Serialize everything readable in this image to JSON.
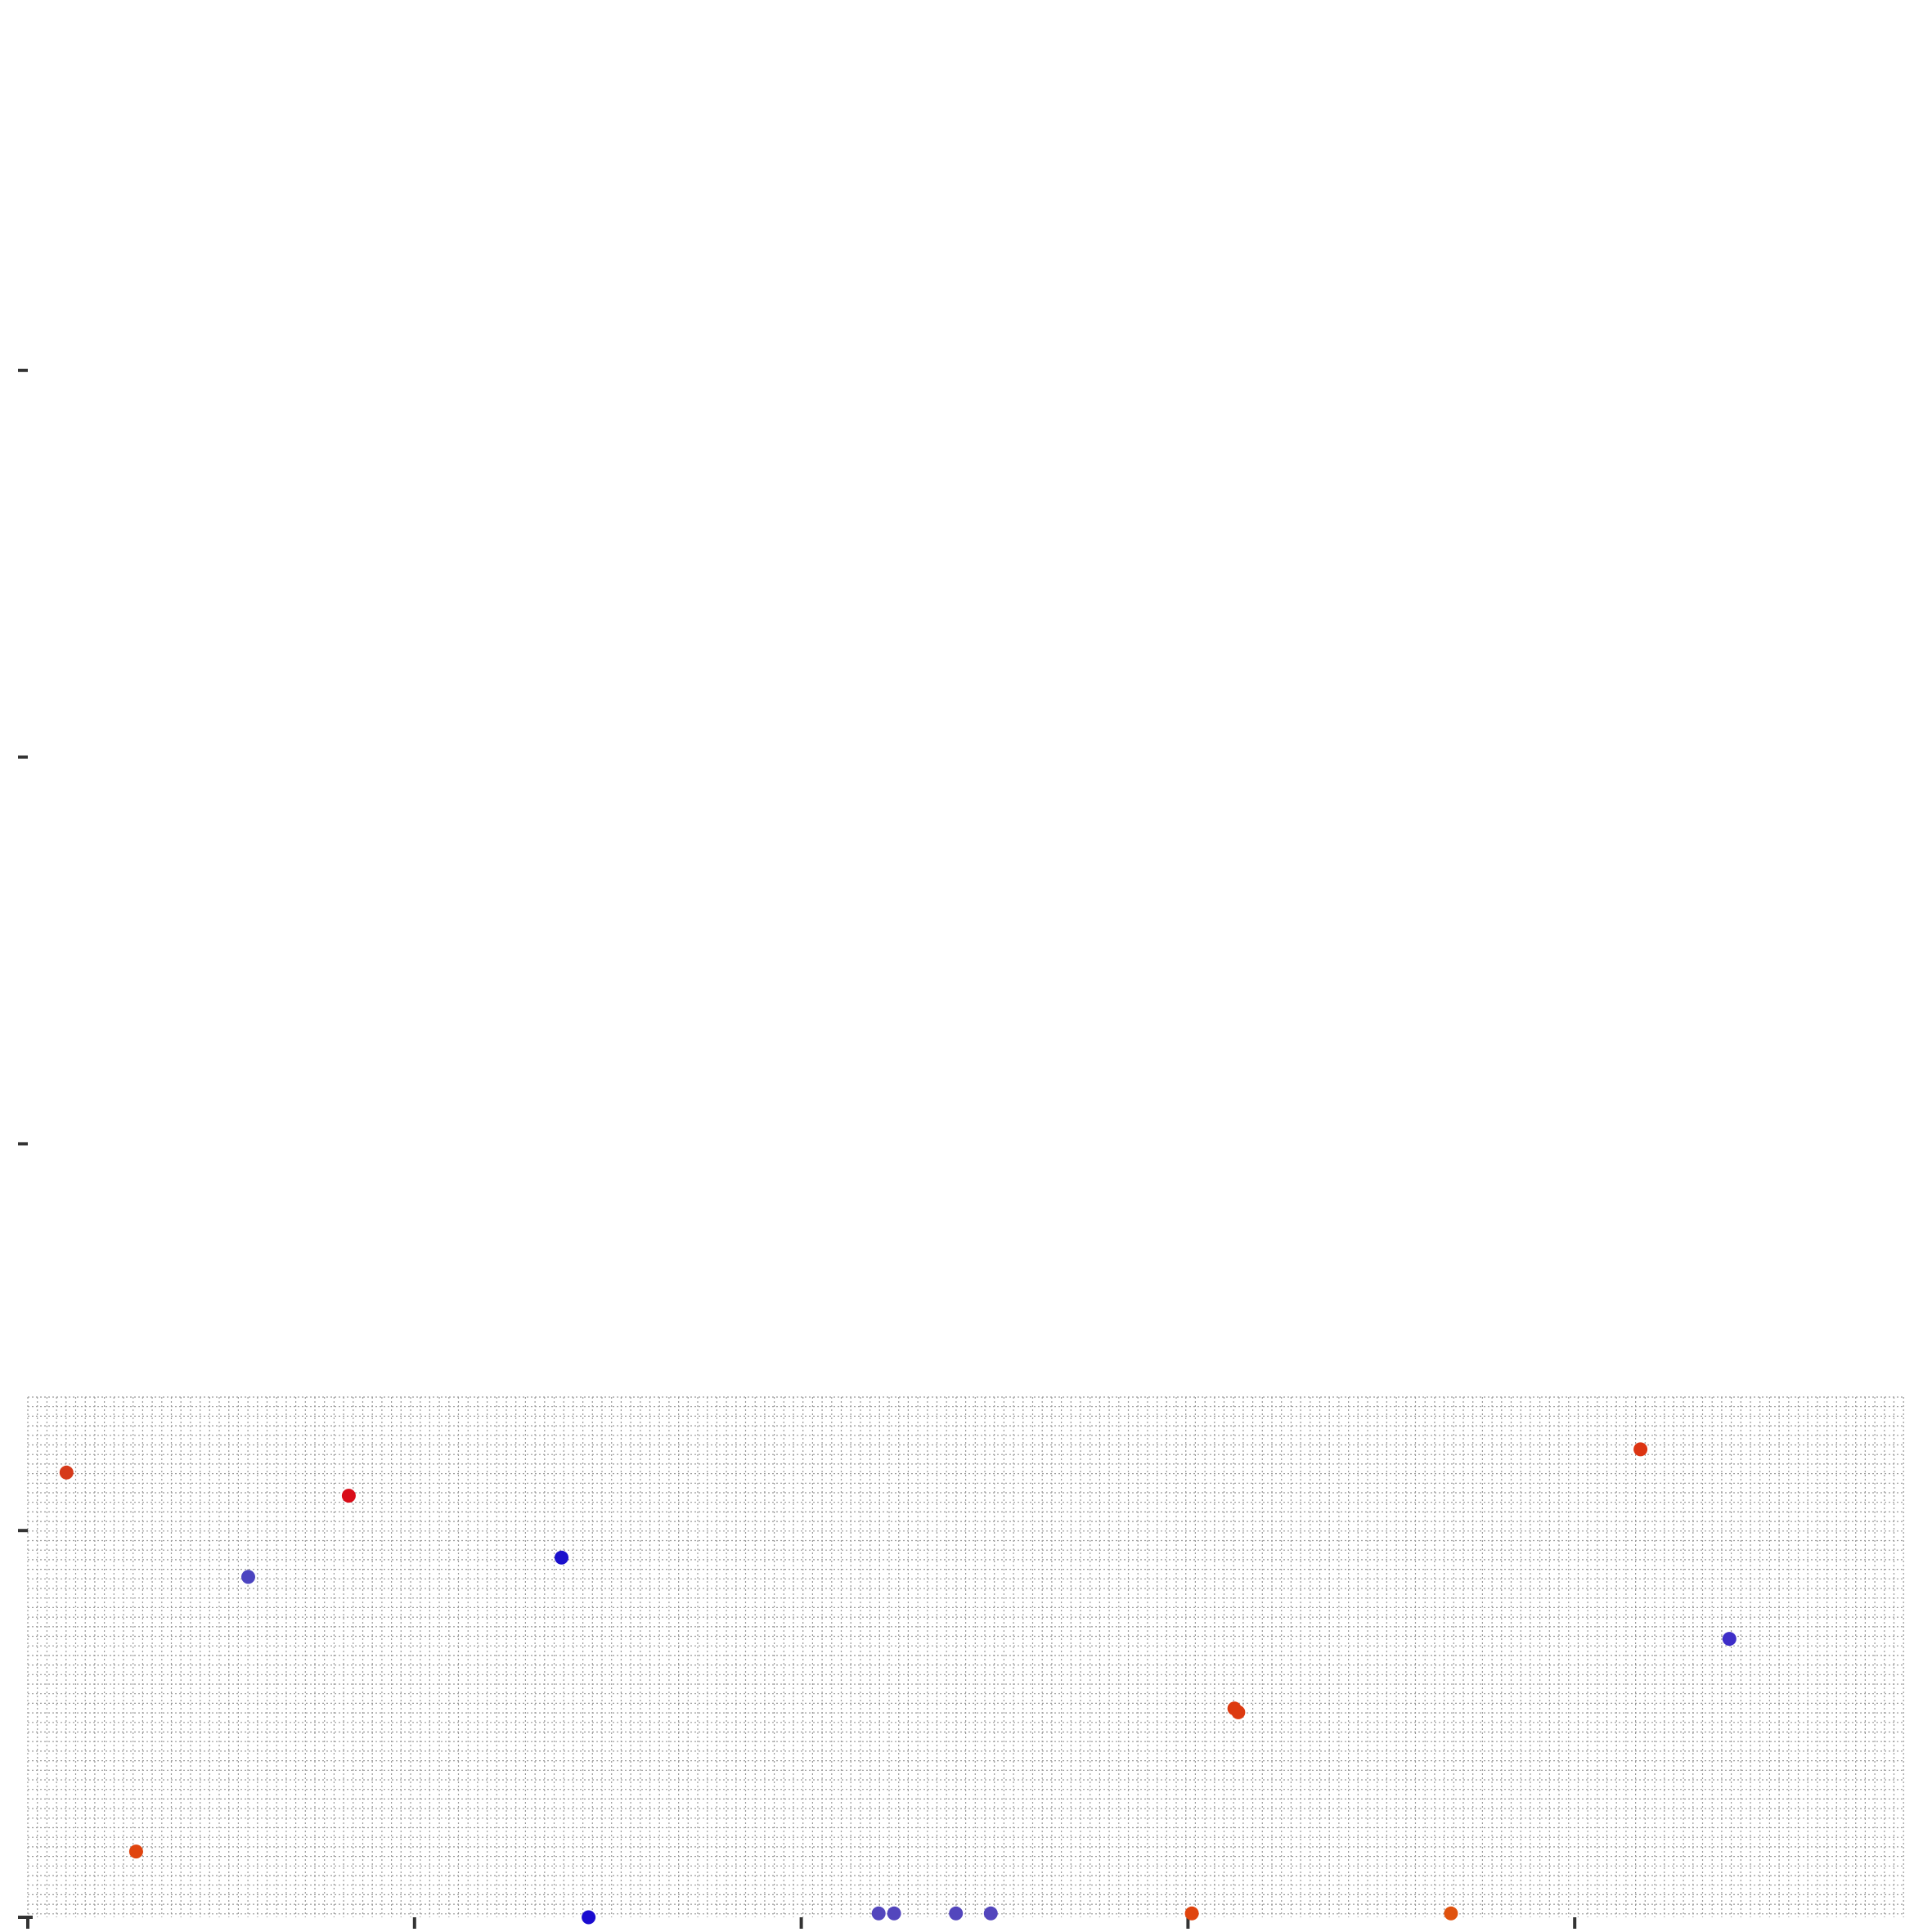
{
  "chart_data": {
    "type": "scatter",
    "title": "",
    "xlabel": "",
    "ylabel": "",
    "xlim": [
      0,
      5
    ],
    "ylim": [
      0,
      5
    ],
    "x_ticks": [
      0,
      1,
      2,
      3,
      4
    ],
    "y_ticks": [
      0,
      1,
      2,
      3,
      4
    ],
    "grid": true,
    "legend": "none",
    "points": [
      {
        "x": 0.1,
        "y": 1.15,
        "color": "#d63a1a"
      },
      {
        "x": 0.28,
        "y": 0.17,
        "color": "#e0440e"
      },
      {
        "x": 0.57,
        "y": 0.88,
        "color": "#4b44c0"
      },
      {
        "x": 0.83,
        "y": 1.09,
        "color": "#d90d19"
      },
      {
        "x": 1.38,
        "y": 0.93,
        "color": "#1a10cc"
      },
      {
        "x": 1.45,
        "y": 0.0,
        "color": "#1a0bd0"
      },
      {
        "x": 2.2,
        "y": 0.01,
        "color": "#5346bd"
      },
      {
        "x": 2.24,
        "y": 0.01,
        "color": "#5346bd"
      },
      {
        "x": 2.4,
        "y": 0.01,
        "color": "#5346bd"
      },
      {
        "x": 2.49,
        "y": 0.01,
        "color": "#5346bd"
      },
      {
        "x": 3.01,
        "y": 0.01,
        "color": "#e0440e"
      },
      {
        "x": 3.12,
        "y": 0.54,
        "color": "#dd3a10"
      },
      {
        "x": 3.13,
        "y": 0.53,
        "color": "#dd3a10"
      },
      {
        "x": 3.68,
        "y": 0.01,
        "color": "#e0520e"
      },
      {
        "x": 4.17,
        "y": 1.21,
        "color": "#dc3412"
      },
      {
        "x": 4.4,
        "y": 0.72,
        "color": "#3e2ec8"
      }
    ]
  }
}
